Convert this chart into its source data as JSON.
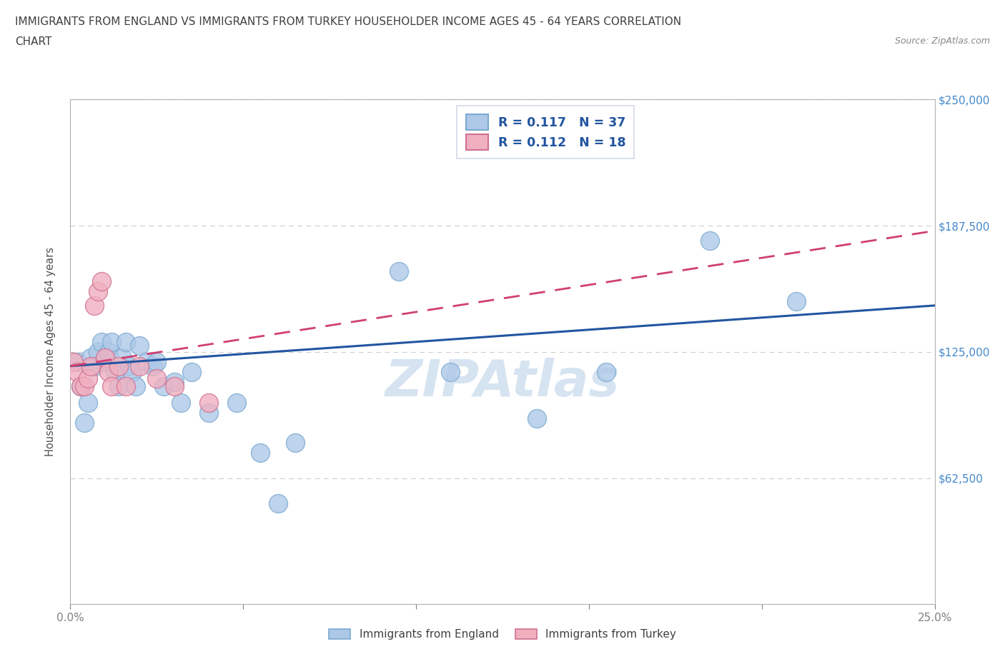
{
  "title_line1": "IMMIGRANTS FROM ENGLAND VS IMMIGRANTS FROM TURKEY HOUSEHOLDER INCOME AGES 45 - 64 YEARS CORRELATION",
  "title_line2": "CHART",
  "source_text": "Source: ZipAtlas.com",
  "ylabel": "Householder Income Ages 45 - 64 years",
  "england_R": 0.117,
  "england_N": 37,
  "turkey_R": 0.112,
  "turkey_N": 18,
  "england_color": "#aec8e8",
  "england_edge_color": "#7aaad0",
  "england_line_color": "#2255a0",
  "turkey_color": "#f0b0c0",
  "turkey_edge_color": "#d07090",
  "turkey_line_color": "#d04070",
  "xlim": [
    0.0,
    0.25
  ],
  "ylim": [
    0,
    250000
  ],
  "england_x": [
    0.002,
    0.003,
    0.004,
    0.005,
    0.006,
    0.007,
    0.008,
    0.009,
    0.01,
    0.011,
    0.012,
    0.013,
    0.014,
    0.015,
    0.016,
    0.017,
    0.018,
    0.019,
    0.02,
    0.022,
    0.024,
    0.025,
    0.027,
    0.03,
    0.032,
    0.035,
    0.04,
    0.048,
    0.055,
    0.06,
    0.065,
    0.095,
    0.11,
    0.135,
    0.155,
    0.185,
    0.21
  ],
  "england_y": [
    120000,
    108000,
    90000,
    100000,
    122000,
    118000,
    125000,
    130000,
    120000,
    125000,
    130000,
    115000,
    108000,
    122000,
    130000,
    118000,
    115000,
    108000,
    128000,
    120000,
    118000,
    120000,
    108000,
    110000,
    100000,
    115000,
    95000,
    100000,
    75000,
    50000,
    80000,
    165000,
    115000,
    92000,
    115000,
    180000,
    150000
  ],
  "turkey_x": [
    0.001,
    0.002,
    0.003,
    0.004,
    0.005,
    0.006,
    0.007,
    0.008,
    0.009,
    0.01,
    0.011,
    0.012,
    0.014,
    0.016,
    0.02,
    0.025,
    0.03,
    0.04
  ],
  "turkey_y": [
    120000,
    115000,
    108000,
    108000,
    112000,
    118000,
    148000,
    155000,
    160000,
    122000,
    115000,
    108000,
    118000,
    108000,
    118000,
    112000,
    108000,
    100000
  ],
  "background_color": "#ffffff",
  "grid_color": "#cccccc",
  "title_color": "#404040",
  "tick_label_color": "#4488cc",
  "watermark_color": "#c5d8ec",
  "watermark_text": "ZIPAtlas"
}
